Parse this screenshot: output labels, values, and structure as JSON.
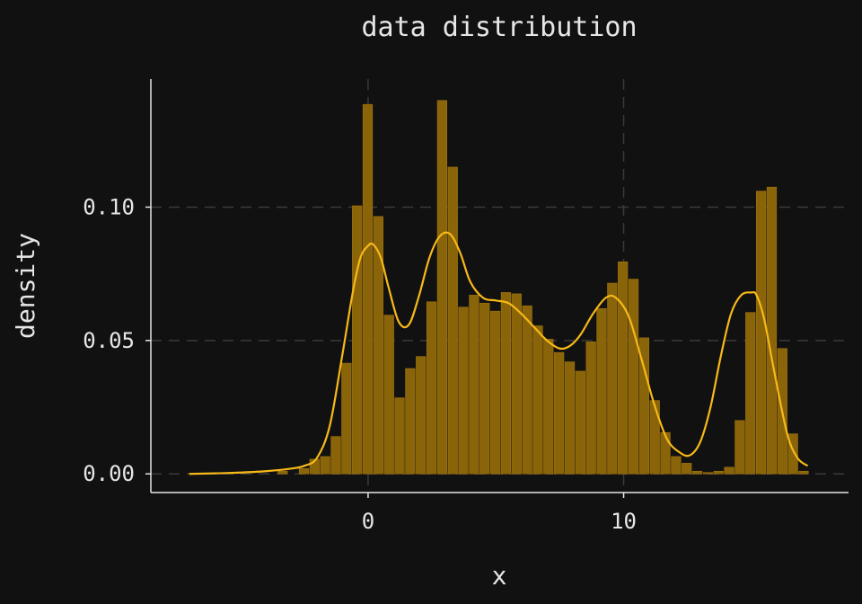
{
  "chart_data": {
    "type": "bar",
    "title": "data distribution",
    "xlabel": "x",
    "ylabel": "density",
    "xlim": [
      -8.5,
      18.8
    ],
    "ylim": [
      -0.007,
      0.148
    ],
    "x_ticks": [
      {
        "value": 0,
        "label": "0"
      },
      {
        "value": 10,
        "label": "10"
      }
    ],
    "y_ticks": [
      {
        "value": 0,
        "label": "0.00"
      },
      {
        "value": 0.05,
        "label": "0.05"
      },
      {
        "value": 0.1,
        "label": "0.10"
      }
    ],
    "grid": true,
    "legend": "none",
    "colors": {
      "background": "#111111",
      "bars": "#8a6409",
      "bar_edge": "#a07410",
      "curve": "#f7b918",
      "axis": "#e6e6e6",
      "text": "#e6e6e6",
      "grid": "#3a3a3a"
    },
    "series": [
      {
        "type": "histogram",
        "bin_start": -3.55,
        "bin_width": 0.416,
        "values": [
          0.001,
          0.0,
          0.002,
          0.0055,
          0.0065,
          0.014,
          0.0415,
          0.1005,
          0.1385,
          0.0965,
          0.0595,
          0.0285,
          0.0395,
          0.044,
          0.0645,
          0.14,
          0.115,
          0.0625,
          0.067,
          0.064,
          0.061,
          0.068,
          0.0675,
          0.063,
          0.0555,
          0.0505,
          0.0455,
          0.042,
          0.0385,
          0.0495,
          0.062,
          0.0715,
          0.0795,
          0.073,
          0.051,
          0.0275,
          0.0155,
          0.0065,
          0.004,
          0.001,
          0.0005,
          0.001,
          0.0025,
          0.02,
          0.0605,
          0.106,
          0.1075,
          0.047,
          0.015,
          0.001
        ]
      },
      {
        "type": "density",
        "x": [
          -7.0,
          -6.0,
          -5.0,
          -4.0,
          -3.0,
          -2.5,
          -2.0,
          -1.5,
          -1.0,
          -0.6,
          -0.3,
          0.0,
          0.2,
          0.5,
          0.8,
          1.2,
          1.6,
          2.0,
          2.4,
          2.8,
          3.2,
          3.6,
          4.0,
          4.5,
          5.0,
          5.5,
          6.0,
          6.5,
          7.0,
          7.5,
          7.9,
          8.3,
          8.8,
          9.3,
          9.7,
          10.2,
          10.7,
          11.2,
          11.7,
          12.2,
          12.6,
          13.0,
          13.4,
          13.8,
          14.2,
          14.6,
          15.0,
          15.2,
          15.5,
          15.9,
          16.4,
          16.8,
          17.2
        ],
        "y": [
          0.0,
          0.0002,
          0.0005,
          0.001,
          0.002,
          0.003,
          0.006,
          0.018,
          0.045,
          0.068,
          0.081,
          0.0855,
          0.086,
          0.081,
          0.07,
          0.057,
          0.056,
          0.067,
          0.081,
          0.089,
          0.09,
          0.083,
          0.072,
          0.066,
          0.065,
          0.064,
          0.06,
          0.055,
          0.05,
          0.047,
          0.048,
          0.052,
          0.06,
          0.066,
          0.066,
          0.059,
          0.043,
          0.026,
          0.013,
          0.008,
          0.007,
          0.012,
          0.025,
          0.044,
          0.06,
          0.067,
          0.068,
          0.067,
          0.058,
          0.038,
          0.015,
          0.006,
          0.003
        ]
      }
    ]
  }
}
